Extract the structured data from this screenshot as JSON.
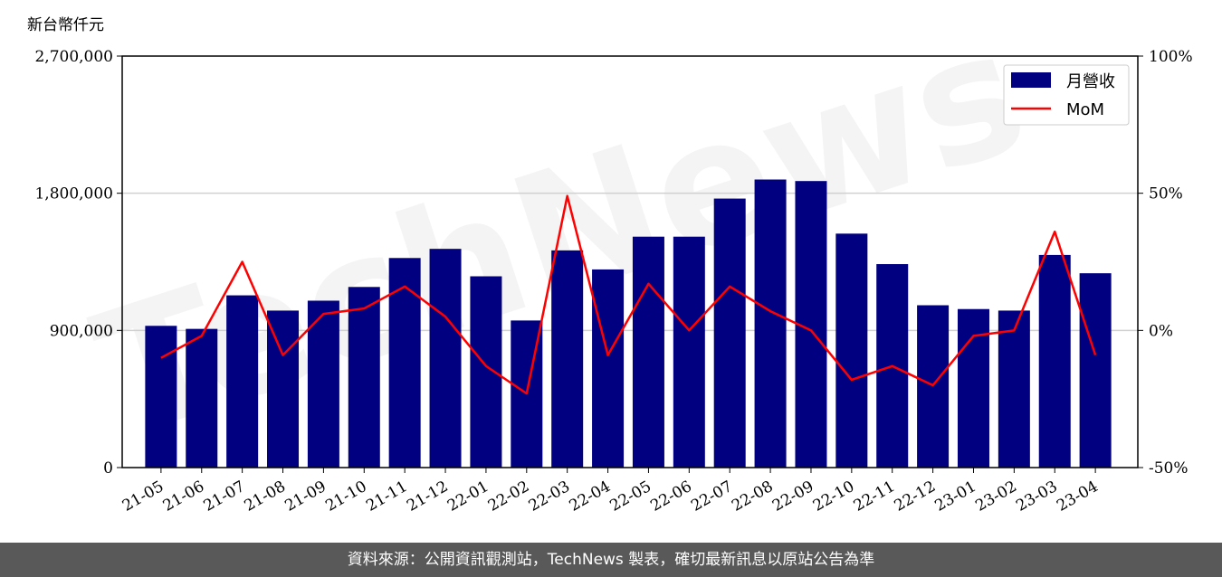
{
  "chart_data": {
    "type": "bar",
    "y_unit": "新台幣仟元",
    "categories": [
      "21-05",
      "21-06",
      "21-07",
      "21-08",
      "21-09",
      "21-10",
      "21-11",
      "21-12",
      "22-01",
      "22-02",
      "22-03",
      "22-04",
      "22-05",
      "22-06",
      "22-07",
      "22-08",
      "22-09",
      "22-10",
      "22-11",
      "22-12",
      "23-01",
      "23-02",
      "23-03",
      "23-04"
    ],
    "series": [
      {
        "name": "月營收",
        "type": "bar",
        "axis": "left",
        "color": "#000080",
        "values": [
          930000,
          910000,
          1130000,
          1030000,
          1095000,
          1185000,
          1375000,
          1435000,
          1255000,
          965000,
          1425000,
          1300000,
          1515000,
          1515000,
          1765000,
          1890000,
          1880000,
          1535000,
          1335000,
          1065000,
          1040000,
          1030000,
          1395000,
          1275000
        ]
      },
      {
        "name": "MoM",
        "type": "line",
        "axis": "right",
        "color": "#ff0000",
        "values": [
          -10,
          -2,
          25,
          -9,
          6,
          8,
          16,
          5,
          -13,
          -23,
          49,
          -9,
          17,
          0,
          16,
          7,
          0,
          -18,
          -13,
          -20,
          -2,
          0,
          36,
          -9
        ]
      }
    ],
    "ylim_left": [
      0,
      2700000
    ],
    "ylim_right": [
      -50,
      100
    ],
    "yticks_left": [
      "0",
      "900,000",
      "1,800,000",
      "2,700,000"
    ],
    "yticks_right": [
      "-50%",
      "0%",
      "50%",
      "100%"
    ],
    "grid": "horizontal",
    "legend_position": "top-right"
  },
  "footer": {
    "text": "資料來源：公開資訊觀測站，TechNews 製表，確切最新訊息以原站公告為準"
  }
}
